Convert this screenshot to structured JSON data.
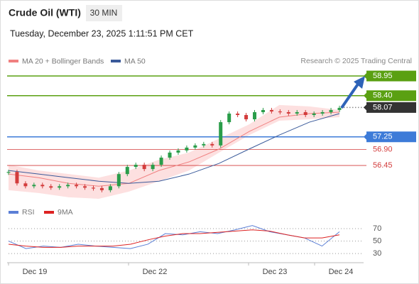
{
  "header": {
    "title": "Crude Oil (WTI)",
    "interval": "30 MIN",
    "timestamp": "Tuesday, December 23, 2025 1:11:51 PM CET",
    "credit": "Research © 2025 Trading Central"
  },
  "chart_data": [
    {
      "type": "candlestick",
      "legend": [
        "MA 20 + Bollinger Bands",
        "MA 50"
      ],
      "ylim": [
        55.4,
        59.3
      ],
      "price": [
        56.27,
        55.95,
        55.87,
        55.91,
        55.87,
        55.83,
        55.87,
        55.91,
        55.87,
        55.83,
        55.82,
        55.76,
        55.87,
        56.21,
        56.41,
        56.47,
        56.35,
        56.47,
        56.67,
        56.81,
        56.87,
        56.95,
        57.01,
        57.05,
        57.01,
        57.66,
        57.9,
        57.86,
        57.74,
        57.94,
        58,
        57.96,
        57.94,
        57.9,
        57.94,
        57.86,
        57.9,
        57.94,
        58,
        58.06
      ],
      "ma20": [
        56.21,
        56.11,
        55.95,
        55.87,
        55.95,
        56.31,
        56.55,
        56.91,
        57.4,
        57.8,
        57.9,
        57.94
      ],
      "ma50": [
        56.31,
        56.21,
        56.11,
        56.01,
        55.95,
        56.01,
        56.21,
        56.51,
        56.91,
        57.3,
        57.66,
        57.9
      ],
      "band_upper": [
        56.47,
        56.31,
        56.21,
        56.11,
        56.31,
        56.61,
        56.81,
        57.2,
        57.6,
        58.14,
        58.1,
        58
      ],
      "band_lower": [
        55.76,
        55.68,
        55.56,
        55.52,
        55.72,
        56.01,
        56.31,
        56.81,
        57.3,
        57.7,
        57.74,
        57.8
      ],
      "colors": {
        "ma20": "#f08080",
        "ma50": "#3a5a9a",
        "band": "#fde0e0",
        "up": "#2a9d4a",
        "down": "#d33c3c"
      },
      "levels": [
        {
          "value": 58.95,
          "color": "#5aa012",
          "kind": "target"
        },
        {
          "value": 58.4,
          "label": "58.40",
          "color": "#5aa012",
          "kind": "target"
        },
        {
          "value": 58.07,
          "color": "#333333",
          "kind": "current"
        },
        {
          "value": 57.25,
          "color": "#3d7bd8",
          "kind": "pivot"
        },
        {
          "value": 56.9,
          "label": "56.90",
          "color": "#d33c3c",
          "kind": "support"
        },
        {
          "value": 56.45,
          "color": "#d33c3c",
          "kind": "support"
        }
      ],
      "x_labels": [
        "Dec 19",
        "Dec 22",
        "Dec 23",
        "Dec 24"
      ]
    },
    {
      "type": "line",
      "legend": [
        "RSI",
        "9MA"
      ],
      "ylim": [
        21,
        78
      ],
      "yticks": [
        70,
        50,
        30
      ],
      "series": [
        {
          "name": "RSI",
          "color": "#5b7fd6",
          "values": [
            50,
            38,
            42,
            40,
            45,
            42,
            40,
            38,
            45,
            62,
            60,
            65,
            62,
            68,
            75,
            65,
            60,
            55,
            42,
            65
          ]
        },
        {
          "name": "9MA",
          "color": "#dd2222",
          "values": [
            45,
            42,
            40,
            40,
            42,
            42,
            42,
            45,
            52,
            58,
            62,
            62,
            64,
            66,
            68,
            66,
            60,
            55,
            55,
            60
          ]
        }
      ]
    }
  ]
}
